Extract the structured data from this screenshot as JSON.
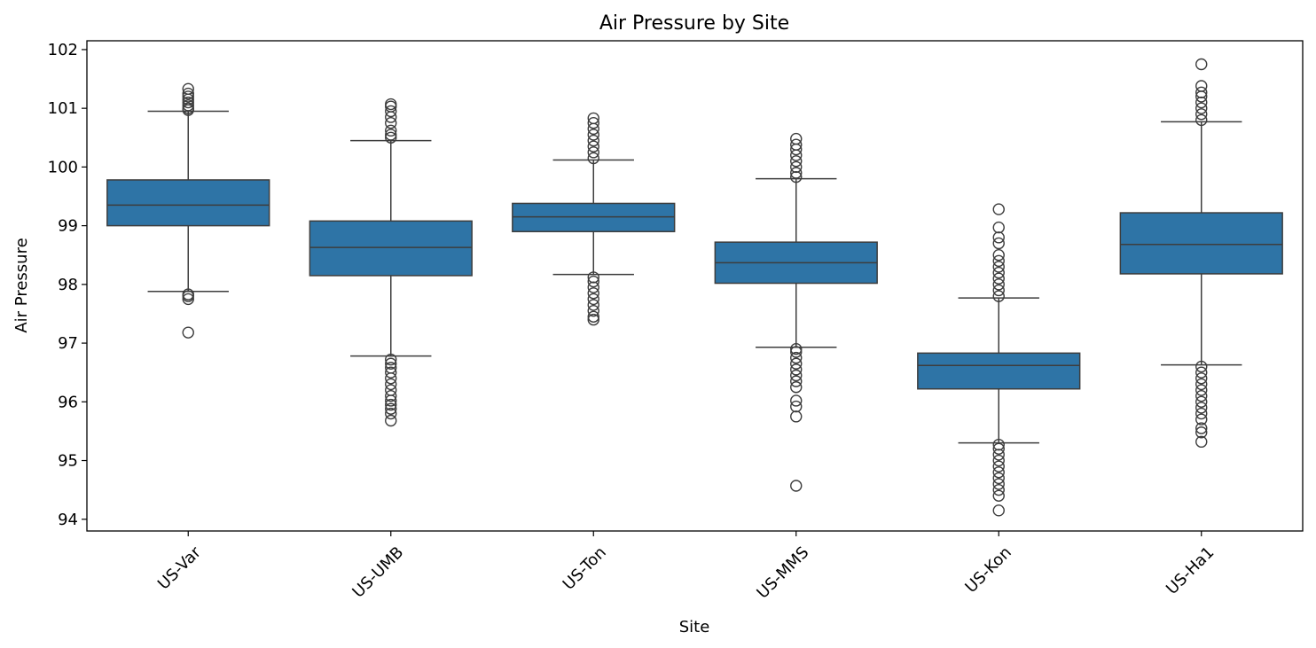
{
  "chart_data": {
    "type": "box",
    "title": "Air Pressure by Site",
    "xlabel": "Site",
    "ylabel": "Air Pressure",
    "ylim": [
      93.8,
      102.15
    ],
    "yticks": [
      94,
      95,
      96,
      97,
      98,
      99,
      100,
      101,
      102
    ],
    "box_color": "#2e74a6",
    "line_color": "#3d3d3d",
    "categories": [
      "US-Var",
      "US-UMB",
      "US-Ton",
      "US-MMS",
      "US-Kon",
      "US-Ha1"
    ],
    "boxes": [
      {
        "site": "US-Var",
        "whisker_low": 97.88,
        "q1": 99.0,
        "median": 99.35,
        "q3": 99.78,
        "whisker_high": 100.95,
        "outliers": [
          97.18,
          97.75,
          97.8,
          97.83,
          100.97,
          101.0,
          101.05,
          101.1,
          101.15,
          101.2,
          101.25,
          101.33
        ]
      },
      {
        "site": "US-UMB",
        "whisker_low": 96.78,
        "q1": 98.15,
        "median": 98.63,
        "q3": 99.08,
        "whisker_high": 100.45,
        "outliers": [
          95.68,
          95.8,
          95.88,
          95.95,
          96.02,
          96.1,
          96.2,
          96.3,
          96.4,
          96.5,
          96.58,
          96.65,
          96.72,
          100.5,
          100.55,
          100.62,
          100.75,
          100.85,
          100.95,
          101.03,
          101.07
        ]
      },
      {
        "site": "US-Ton",
        "whisker_low": 98.17,
        "q1": 98.9,
        "median": 99.15,
        "q3": 99.38,
        "whisker_high": 100.12,
        "outliers": [
          97.4,
          97.45,
          97.55,
          97.65,
          97.75,
          97.85,
          97.95,
          98.05,
          98.12,
          100.15,
          100.25,
          100.35,
          100.45,
          100.55,
          100.65,
          100.75,
          100.83
        ]
      },
      {
        "site": "US-MMS",
        "whisker_low": 96.93,
        "q1": 98.02,
        "median": 98.37,
        "q3": 98.72,
        "whisker_high": 99.8,
        "outliers": [
          94.57,
          95.75,
          95.92,
          96.02,
          96.25,
          96.35,
          96.45,
          96.55,
          96.65,
          96.75,
          96.85,
          96.9,
          99.83,
          99.9,
          100.0,
          100.1,
          100.2,
          100.3,
          100.38,
          100.48
        ]
      },
      {
        "site": "US-Kon",
        "whisker_low": 95.3,
        "q1": 96.22,
        "median": 96.62,
        "q3": 96.83,
        "whisker_high": 97.77,
        "outliers": [
          94.15,
          94.4,
          94.5,
          94.6,
          94.7,
          94.8,
          94.9,
          95.0,
          95.1,
          95.2,
          95.27,
          97.8,
          97.9,
          98.0,
          98.1,
          98.2,
          98.3,
          98.4,
          98.5,
          98.7,
          98.8,
          98.97,
          99.28
        ]
      },
      {
        "site": "US-Ha1",
        "whisker_low": 96.63,
        "q1": 98.18,
        "median": 98.68,
        "q3": 99.22,
        "whisker_high": 100.77,
        "outliers": [
          95.32,
          95.48,
          95.55,
          95.7,
          95.8,
          95.9,
          96.0,
          96.1,
          96.2,
          96.3,
          96.4,
          96.5,
          96.6,
          100.8,
          100.9,
          101.0,
          101.1,
          101.2,
          101.27,
          101.38,
          101.75
        ]
      }
    ]
  }
}
